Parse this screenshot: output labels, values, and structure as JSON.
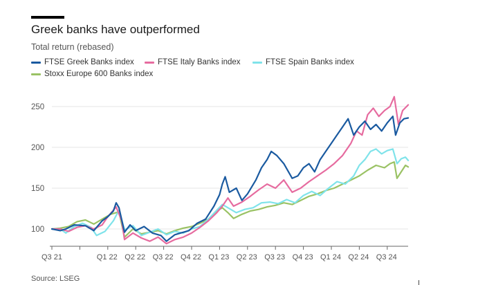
{
  "header": {
    "title": "Greek banks have outperformed",
    "subtitle": "Total return (rebased)"
  },
  "source": "Source: LSEG",
  "chart_data": {
    "type": "line",
    "title": "Greek banks have outperformed",
    "subtitle": "Total return (rebased)",
    "xlabel": "",
    "ylabel": "",
    "x_tick_labels": [
      "Q3 21",
      "Q1 22",
      "Q2 22",
      "Q3 22",
      "Q4 22",
      "Q1 23",
      "Q2 23",
      "Q3 23",
      "Q4 23",
      "Q1 24",
      "Q2 24",
      "Q3 24"
    ],
    "y_ticks": [
      100,
      150,
      200,
      250
    ],
    "ylim": [
      75,
      265
    ],
    "grid": true,
    "legend_position": "top",
    "colors": {
      "greek": "#1a5aa0",
      "italy": "#e66b9f",
      "spain": "#7fe3ea",
      "stoxx": "#9ac264"
    },
    "series": [
      {
        "name": "FTSE Greek Banks index",
        "color": "#1a5aa0",
        "points": [
          [
            0,
            100
          ],
          [
            0.3,
            98
          ],
          [
            0.5,
            100
          ],
          [
            0.8,
            105
          ],
          [
            1.2,
            104
          ],
          [
            1.5,
            98
          ],
          [
            1.8,
            110
          ],
          [
            2.0,
            115
          ],
          [
            2.2,
            122
          ],
          [
            2.3,
            132
          ],
          [
            2.4,
            126
          ],
          [
            2.6,
            96
          ],
          [
            2.8,
            105
          ],
          [
            3.0,
            98
          ],
          [
            3.3,
            103
          ],
          [
            3.6,
            95
          ],
          [
            3.9,
            92
          ],
          [
            4.1,
            85
          ],
          [
            4.4,
            93
          ],
          [
            4.6,
            95
          ],
          [
            4.9,
            98
          ],
          [
            5.2,
            107
          ],
          [
            5.5,
            112
          ],
          [
            5.8,
            128
          ],
          [
            6.0,
            142
          ],
          [
            6.1,
            155
          ],
          [
            6.2,
            164
          ],
          [
            6.35,
            145
          ],
          [
            6.6,
            150
          ],
          [
            6.8,
            135
          ],
          [
            7.0,
            143
          ],
          [
            7.3,
            160
          ],
          [
            7.5,
            175
          ],
          [
            7.7,
            185
          ],
          [
            7.85,
            195
          ],
          [
            8.05,
            190
          ],
          [
            8.3,
            180
          ],
          [
            8.6,
            162
          ],
          [
            8.8,
            165
          ],
          [
            9.0,
            175
          ],
          [
            9.2,
            180
          ],
          [
            9.4,
            170
          ],
          [
            9.6,
            185
          ],
          [
            9.8,
            195
          ],
          [
            10.0,
            205
          ],
          [
            10.2,
            215
          ],
          [
            10.4,
            225
          ],
          [
            10.6,
            235
          ],
          [
            10.8,
            215
          ],
          [
            11.0,
            225
          ],
          [
            11.2,
            232
          ],
          [
            11.4,
            222
          ],
          [
            11.6,
            228
          ],
          [
            11.8,
            220
          ],
          [
            12.0,
            230
          ],
          [
            12.2,
            238
          ],
          [
            12.3,
            215
          ],
          [
            12.45,
            230
          ],
          [
            12.6,
            235
          ],
          [
            12.75,
            236
          ]
        ]
      },
      {
        "name": "FTSE Italy Banks index",
        "color": "#e66b9f",
        "points": [
          [
            0,
            100
          ],
          [
            0.3,
            100
          ],
          [
            0.6,
            97
          ],
          [
            0.9,
            102
          ],
          [
            1.2,
            104
          ],
          [
            1.5,
            100
          ],
          [
            1.8,
            105
          ],
          [
            2.0,
            115
          ],
          [
            2.3,
            127
          ],
          [
            2.5,
            110
          ],
          [
            2.6,
            87
          ],
          [
            2.9,
            95
          ],
          [
            3.2,
            89
          ],
          [
            3.5,
            85
          ],
          [
            3.8,
            90
          ],
          [
            4.1,
            82
          ],
          [
            4.4,
            87
          ],
          [
            4.7,
            90
          ],
          [
            5.0,
            95
          ],
          [
            5.3,
            102
          ],
          [
            5.6,
            110
          ],
          [
            5.9,
            120
          ],
          [
            6.1,
            128
          ],
          [
            6.3,
            138
          ],
          [
            6.5,
            128
          ],
          [
            6.8,
            133
          ],
          [
            7.1,
            140
          ],
          [
            7.4,
            148
          ],
          [
            7.7,
            155
          ],
          [
            8.0,
            150
          ],
          [
            8.3,
            160
          ],
          [
            8.6,
            145
          ],
          [
            8.9,
            150
          ],
          [
            9.2,
            158
          ],
          [
            9.5,
            165
          ],
          [
            9.8,
            172
          ],
          [
            10.1,
            180
          ],
          [
            10.4,
            190
          ],
          [
            10.7,
            205
          ],
          [
            10.9,
            220
          ],
          [
            11.1,
            215
          ],
          [
            11.3,
            240
          ],
          [
            11.5,
            248
          ],
          [
            11.7,
            238
          ],
          [
            11.9,
            245
          ],
          [
            12.1,
            250
          ],
          [
            12.25,
            262
          ],
          [
            12.4,
            228
          ],
          [
            12.55,
            245
          ],
          [
            12.75,
            252
          ]
        ]
      },
      {
        "name": "FTSE Spain Banks index",
        "color": "#7fe3ea",
        "points": [
          [
            0,
            100
          ],
          [
            0.3,
            100
          ],
          [
            0.5,
            95
          ],
          [
            0.8,
            103
          ],
          [
            1.1,
            107
          ],
          [
            1.4,
            102
          ],
          [
            1.6,
            92
          ],
          [
            1.9,
            97
          ],
          [
            2.2,
            110
          ],
          [
            2.4,
            123
          ],
          [
            2.6,
            99
          ],
          [
            2.9,
            104
          ],
          [
            3.2,
            92
          ],
          [
            3.5,
            96
          ],
          [
            3.8,
            100
          ],
          [
            4.1,
            93
          ],
          [
            4.4,
            97
          ],
          [
            4.7,
            95
          ],
          [
            5.0,
            100
          ],
          [
            5.3,
            103
          ],
          [
            5.6,
            112
          ],
          [
            5.9,
            123
          ],
          [
            6.1,
            130
          ],
          [
            6.3,
            126
          ],
          [
            6.6,
            120
          ],
          [
            6.9,
            124
          ],
          [
            7.2,
            126
          ],
          [
            7.5,
            132
          ],
          [
            7.8,
            133
          ],
          [
            8.1,
            131
          ],
          [
            8.4,
            136
          ],
          [
            8.7,
            132
          ],
          [
            9.0,
            141
          ],
          [
            9.3,
            146
          ],
          [
            9.6,
            141
          ],
          [
            9.9,
            150
          ],
          [
            10.2,
            158
          ],
          [
            10.5,
            155
          ],
          [
            10.8,
            165
          ],
          [
            11.0,
            178
          ],
          [
            11.2,
            185
          ],
          [
            11.4,
            195
          ],
          [
            11.6,
            198
          ],
          [
            11.8,
            192
          ],
          [
            12.0,
            196
          ],
          [
            12.2,
            198
          ],
          [
            12.35,
            180
          ],
          [
            12.5,
            186
          ],
          [
            12.65,
            188
          ],
          [
            12.75,
            184
          ]
        ]
      },
      {
        "name": "Stoxx Europe 600 Banks index",
        "color": "#9ac264",
        "points": [
          [
            0,
            100
          ],
          [
            0.3,
            101
          ],
          [
            0.6,
            103
          ],
          [
            0.9,
            109
          ],
          [
            1.2,
            111
          ],
          [
            1.5,
            106
          ],
          [
            1.8,
            112
          ],
          [
            2.1,
            118
          ],
          [
            2.4,
            121
          ],
          [
            2.6,
            90
          ],
          [
            2.9,
            100
          ],
          [
            3.2,
            94
          ],
          [
            3.5,
            96
          ],
          [
            3.8,
            98
          ],
          [
            4.1,
            94
          ],
          [
            4.4,
            98
          ],
          [
            4.7,
            101
          ],
          [
            5.0,
            103
          ],
          [
            5.3,
            107
          ],
          [
            5.6,
            112
          ],
          [
            5.9,
            122
          ],
          [
            6.1,
            126
          ],
          [
            6.3,
            120
          ],
          [
            6.5,
            113
          ],
          [
            6.8,
            118
          ],
          [
            7.1,
            122
          ],
          [
            7.4,
            124
          ],
          [
            7.7,
            127
          ],
          [
            8.0,
            129
          ],
          [
            8.3,
            132
          ],
          [
            8.6,
            130
          ],
          [
            8.9,
            135
          ],
          [
            9.2,
            140
          ],
          [
            9.5,
            143
          ],
          [
            9.8,
            147
          ],
          [
            10.1,
            150
          ],
          [
            10.4,
            155
          ],
          [
            10.7,
            160
          ],
          [
            11.0,
            165
          ],
          [
            11.3,
            172
          ],
          [
            11.6,
            178
          ],
          [
            11.9,
            175
          ],
          [
            12.1,
            180
          ],
          [
            12.25,
            182
          ],
          [
            12.35,
            162
          ],
          [
            12.5,
            170
          ],
          [
            12.65,
            178
          ],
          [
            12.75,
            176
          ]
        ]
      }
    ]
  }
}
